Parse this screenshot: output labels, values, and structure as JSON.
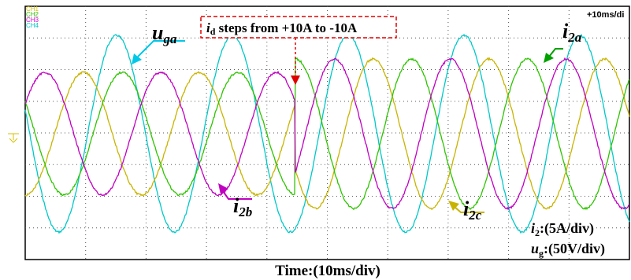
{
  "channels": [
    "CH1",
    "CH2",
    "CH3",
    "CH4"
  ],
  "timebase": "+10ms/di",
  "annotation": {
    "var": "i",
    "sub": "d",
    "rest": " steps from +10A to -10A"
  },
  "labels": {
    "uga": {
      "main": "u",
      "sub": "ga"
    },
    "i2a": {
      "main": "i",
      "sub": "2a"
    },
    "i2b": {
      "main": "i",
      "sub": "2b"
    },
    "i2c": {
      "main": "i",
      "sub": "2c"
    }
  },
  "scale": {
    "i2": {
      "main": "i",
      "sub": "2",
      "rest": ":(5A/div)"
    },
    "ug": {
      "main": "u",
      "sub": "g",
      "rest": ":(50V/div)"
    }
  },
  "xlabel": "Time:(10ms/div)"
}
